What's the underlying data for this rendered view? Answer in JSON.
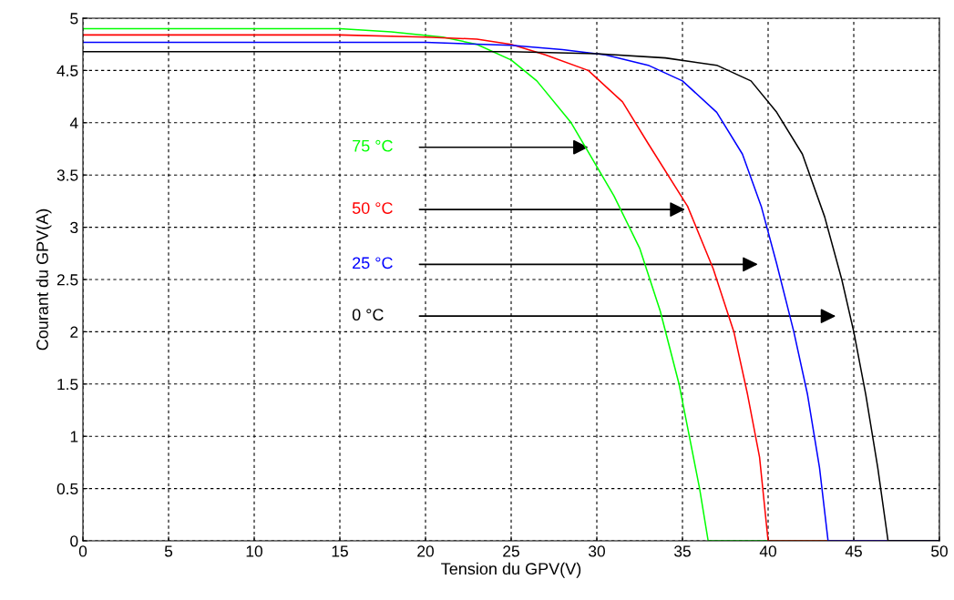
{
  "chart_data": {
    "type": "line",
    "xlabel": "Tension du GPV(V)",
    "ylabel": "Courant du GPV(A)",
    "xlim": [
      0,
      50
    ],
    "ylim": [
      0,
      5
    ],
    "xticks": [
      0,
      5,
      10,
      15,
      20,
      25,
      30,
      35,
      40,
      45,
      50
    ],
    "yticks": [
      0,
      0.5,
      1,
      1.5,
      2,
      2.5,
      3,
      3.5,
      4,
      4.5,
      5
    ],
    "grid": true,
    "legend": false,
    "line_style": "solid",
    "marker": "none",
    "series": [
      {
        "color": "#00ff00",
        "x": [
          0,
          15,
          18,
          21,
          23,
          25,
          26.5,
          28.5,
          29.5,
          31,
          32.5,
          33.7,
          34.8,
          35.4,
          36,
          36.5,
          50
        ],
        "values": [
          4.9,
          4.9,
          4.87,
          4.82,
          4.75,
          4.6,
          4.4,
          4.0,
          3.72,
          3.3,
          2.8,
          2.2,
          1.5,
          1.0,
          0.5,
          0,
          0
        ]
      },
      {
        "color": "#ff0000",
        "x": [
          0,
          15,
          20,
          23,
          25,
          27,
          29.5,
          31.5,
          33,
          35.3,
          36.8,
          38,
          38.8,
          39.5,
          40,
          50
        ],
        "values": [
          4.84,
          4.84,
          4.82,
          4.8,
          4.75,
          4.65,
          4.5,
          4.2,
          3.8,
          3.2,
          2.6,
          2.0,
          1.4,
          0.8,
          0,
          0
        ]
      },
      {
        "color": "#0000ff",
        "x": [
          0,
          20,
          25,
          28,
          30.5,
          33,
          35,
          37,
          38.5,
          39.6,
          40.5,
          41.5,
          42.3,
          43,
          43.5,
          50
        ],
        "values": [
          4.77,
          4.77,
          4.74,
          4.7,
          4.65,
          4.55,
          4.4,
          4.1,
          3.7,
          3.2,
          2.65,
          2.0,
          1.4,
          0.7,
          0,
          0
        ]
      },
      {
        "color": "#000000",
        "x": [
          0,
          25,
          30,
          34,
          37,
          39,
          40.5,
          42,
          43.3,
          44.3,
          45,
          45.7,
          46.4,
          47,
          50
        ],
        "values": [
          4.68,
          4.68,
          4.66,
          4.62,
          4.55,
          4.4,
          4.1,
          3.7,
          3.1,
          2.5,
          2.0,
          1.4,
          0.7,
          0,
          0
        ]
      }
    ],
    "annotations": [
      "75 °C",
      "50 °C",
      "25 °C",
      "0 °C"
    ]
  }
}
